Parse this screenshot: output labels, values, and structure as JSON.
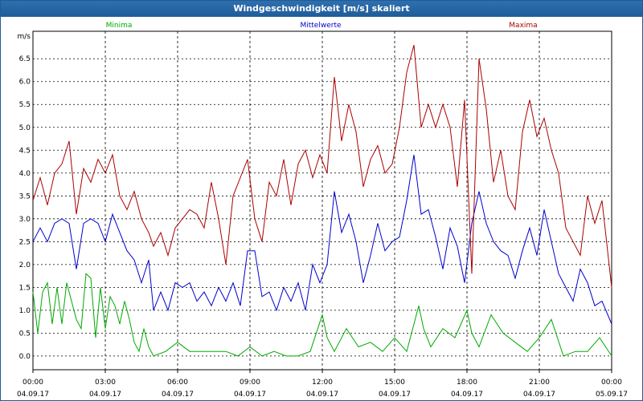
{
  "window": {
    "title": "Windgeschwindigkeit [m/s] skaliert"
  },
  "colors": {
    "minima": "#00aa00",
    "mittel": "#0000cc",
    "maxima": "#aa0000",
    "grid": "#000000"
  },
  "chart_data": {
    "type": "line",
    "ylabel": "m/s",
    "ylim": [
      -0.3,
      7.1
    ],
    "xlim": [
      0,
      24
    ],
    "yticks": [
      "0.0",
      "0.5",
      "1.0",
      "1.5",
      "2.0",
      "2.5",
      "3.0",
      "3.5",
      "4.0",
      "4.5",
      "5.0",
      "5.5",
      "6.0",
      "6.5"
    ],
    "ytick_values": [
      0,
      0.5,
      1,
      1.5,
      2,
      2.5,
      3,
      3.5,
      4,
      4.5,
      5,
      5.5,
      6,
      6.5
    ],
    "xticks": [
      {
        "time": "00:00",
        "date": "04.09.17",
        "h": 0
      },
      {
        "time": "03:00",
        "date": "04.09.17",
        "h": 3
      },
      {
        "time": "06:00",
        "date": "04.09.17",
        "h": 6
      },
      {
        "time": "09:00",
        "date": "04.09.17",
        "h": 9
      },
      {
        "time": "12:00",
        "date": "04.09.17",
        "h": 12
      },
      {
        "time": "15:00",
        "date": "04.09.17",
        "h": 15
      },
      {
        "time": "18:00",
        "date": "04.09.17",
        "h": 18
      },
      {
        "time": "21:00",
        "date": "04.09.17",
        "h": 21
      },
      {
        "time": "00:00",
        "date": "05.09.17",
        "h": 24
      }
    ],
    "series": [
      {
        "name": "Minima",
        "x": [
          0,
          0.2,
          0.4,
          0.6,
          0.8,
          1,
          1.2,
          1.4,
          1.6,
          1.8,
          2,
          2.2,
          2.4,
          2.6,
          2.8,
          3,
          3.2,
          3.4,
          3.6,
          3.8,
          4,
          4.2,
          4.4,
          4.6,
          4.8,
          5,
          5.5,
          6,
          6.5,
          7,
          7.5,
          8,
          8.5,
          9,
          9.5,
          10,
          10.5,
          11,
          11.5,
          12,
          12.2,
          12.5,
          13,
          13.5,
          14,
          14.5,
          15,
          15.5,
          16,
          16.2,
          16.5,
          17,
          17.5,
          18,
          18.2,
          18.5,
          19,
          19.5,
          20,
          20.5,
          21,
          21.5,
          22,
          22.5,
          23,
          23.5,
          24
        ],
        "values": [
          1.4,
          0.5,
          1.4,
          1.6,
          0.7,
          1.5,
          0.7,
          1.6,
          1.2,
          0.8,
          0.6,
          1.8,
          1.7,
          0.4,
          1.5,
          0.6,
          1.3,
          1.1,
          0.7,
          1.2,
          0.8,
          0.3,
          0.1,
          0.6,
          0.2,
          0.0,
          0.1,
          0.3,
          0.1,
          0.1,
          0.1,
          0.1,
          0.0,
          0.2,
          0.0,
          0.1,
          0.0,
          0.0,
          0.1,
          0.9,
          0.4,
          0.1,
          0.6,
          0.2,
          0.3,
          0.1,
          0.4,
          0.1,
          1.1,
          0.6,
          0.2,
          0.6,
          0.4,
          1.0,
          0.5,
          0.2,
          0.9,
          0.5,
          0.3,
          0.1,
          0.4,
          0.8,
          0.0,
          0.1,
          0.1,
          0.4,
          0.0
        ]
      },
      {
        "name": "Mittelwerte",
        "x": [
          0,
          0.3,
          0.6,
          0.9,
          1.2,
          1.5,
          1.8,
          2.1,
          2.4,
          2.7,
          3,
          3.3,
          3.6,
          3.9,
          4.2,
          4.5,
          4.8,
          5,
          5.3,
          5.6,
          5.9,
          6.2,
          6.5,
          6.8,
          7.1,
          7.4,
          7.7,
          8,
          8.3,
          8.6,
          8.9,
          9.2,
          9.5,
          9.8,
          10.1,
          10.4,
          10.7,
          11,
          11.3,
          11.6,
          11.9,
          12.2,
          12.5,
          12.8,
          13.1,
          13.4,
          13.7,
          14,
          14.3,
          14.6,
          14.9,
          15.2,
          15.5,
          15.8,
          16.1,
          16.4,
          16.7,
          17,
          17.3,
          17.6,
          17.9,
          18.2,
          18.5,
          18.8,
          19.1,
          19.4,
          19.7,
          20,
          20.3,
          20.6,
          20.9,
          21.2,
          21.5,
          21.8,
          22.1,
          22.4,
          22.7,
          23,
          23.3,
          23.6,
          24
        ],
        "values": [
          2.5,
          2.8,
          2.5,
          2.9,
          3.0,
          2.9,
          1.9,
          2.9,
          3.0,
          2.9,
          2.5,
          3.1,
          2.7,
          2.3,
          2.1,
          1.6,
          2.1,
          1.0,
          1.4,
          1.0,
          1.6,
          1.5,
          1.6,
          1.2,
          1.4,
          1.1,
          1.5,
          1.2,
          1.6,
          1.1,
          2.3,
          2.3,
          1.3,
          1.4,
          1.0,
          1.5,
          1.2,
          1.6,
          1.0,
          2.0,
          1.6,
          2.0,
          3.6,
          2.7,
          3.1,
          2.5,
          1.6,
          2.2,
          2.9,
          2.3,
          2.5,
          2.6,
          3.4,
          4.4,
          3.1,
          3.2,
          2.6,
          1.9,
          2.8,
          2.4,
          1.6,
          2.9,
          3.6,
          2.9,
          2.5,
          2.3,
          2.2,
          1.7,
          2.3,
          2.8,
          2.2,
          3.2,
          2.5,
          1.8,
          1.5,
          1.2,
          1.9,
          1.6,
          1.1,
          1.2,
          0.7
        ]
      },
      {
        "name": "Maxima",
        "x": [
          0,
          0.3,
          0.6,
          0.9,
          1.2,
          1.5,
          1.8,
          2.1,
          2.4,
          2.7,
          3,
          3.3,
          3.6,
          3.9,
          4.2,
          4.5,
          4.8,
          5,
          5.3,
          5.6,
          5.9,
          6.2,
          6.5,
          6.8,
          7.1,
          7.4,
          7.7,
          8,
          8.3,
          8.6,
          8.9,
          9.2,
          9.5,
          9.8,
          10.1,
          10.4,
          10.7,
          11,
          11.3,
          11.6,
          11.9,
          12.2,
          12.5,
          12.8,
          13.1,
          13.4,
          13.7,
          14,
          14.3,
          14.6,
          14.9,
          15.2,
          15.5,
          15.8,
          16.1,
          16.4,
          16.7,
          17,
          17.3,
          17.6,
          17.9,
          18.2,
          18.5,
          18.8,
          19.1,
          19.4,
          19.7,
          20,
          20.3,
          20.6,
          20.9,
          21.2,
          21.5,
          21.8,
          22.1,
          22.4,
          22.7,
          23,
          23.3,
          23.6,
          24
        ],
        "values": [
          3.4,
          3.9,
          3.3,
          4.0,
          4.2,
          4.7,
          3.1,
          4.1,
          3.8,
          4.3,
          4.0,
          4.4,
          3.5,
          3.2,
          3.6,
          3.0,
          2.7,
          2.4,
          2.7,
          2.2,
          2.8,
          3.0,
          3.2,
          3.1,
          2.8,
          3.8,
          3.0,
          2.0,
          3.5,
          3.9,
          4.3,
          3.0,
          2.5,
          3.8,
          3.5,
          4.3,
          3.3,
          4.2,
          4.5,
          3.9,
          4.4,
          4.0,
          6.1,
          4.7,
          5.5,
          4.9,
          3.7,
          4.3,
          4.6,
          4.0,
          4.2,
          5.0,
          6.2,
          6.8,
          5.0,
          5.5,
          5.0,
          5.5,
          5.0,
          3.7,
          5.6,
          1.8,
          6.5,
          5.4,
          3.8,
          4.5,
          3.5,
          3.2,
          4.9,
          5.6,
          4.8,
          5.2,
          4.5,
          4.0,
          2.8,
          2.5,
          2.2,
          3.5,
          2.9,
          3.4,
          1.5
        ]
      }
    ],
    "legend": [
      "Minima",
      "Mittelwerte",
      "Maxima"
    ],
    "grid": true
  }
}
